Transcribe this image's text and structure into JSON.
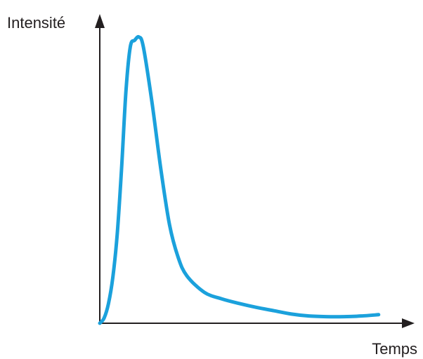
{
  "chart_data": {
    "type": "line",
    "title": "",
    "xlabel": "Temps",
    "ylabel": "Intensité",
    "x_ticks": false,
    "y_ticks": false,
    "grid": false,
    "legend": "none",
    "series": [
      {
        "color": "#1ba1dc",
        "x": [
          0,
          1,
          2,
          3,
          4,
          5,
          6,
          7,
          8,
          9,
          10,
          12,
          14,
          16,
          18,
          20,
          24,
          28,
          32,
          36,
          40,
          44,
          48,
          52,
          56,
          60,
          64
        ],
        "y": [
          0,
          8,
          30,
          70,
          135,
          235,
          352,
          420,
          430,
          435,
          420,
          335,
          235,
          150,
          100,
          72,
          47,
          37,
          30,
          24,
          19,
          14,
          11,
          10,
          10,
          11,
          13
        ]
      }
    ],
    "xlim": [
      0,
      70
    ],
    "ylim": [
      0,
      470
    ]
  }
}
